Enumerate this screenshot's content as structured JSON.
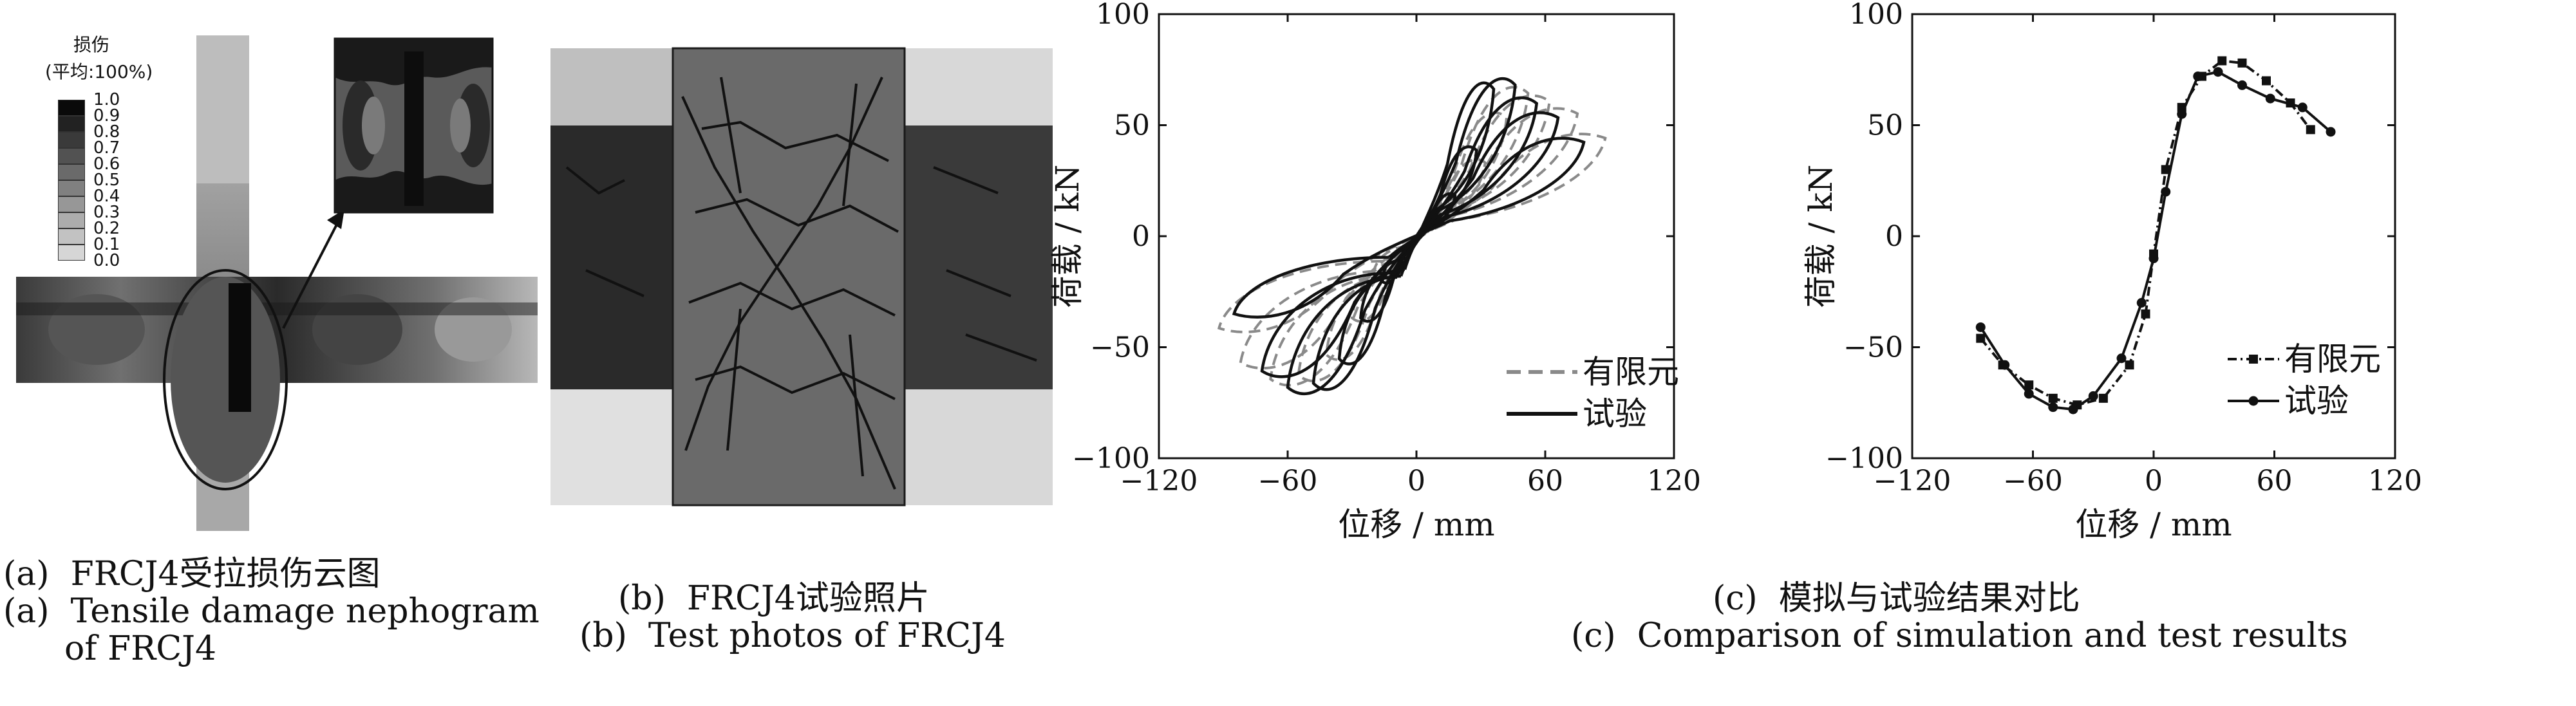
{
  "panel_a": {
    "legend_title": "损伤",
    "legend_subtitle": "(平均:100%)",
    "legend_levels": [
      "1.0",
      "0.9",
      "0.8",
      "0.7",
      "0.6",
      "0.5",
      "0.4",
      "0.3",
      "0.2",
      "0.1",
      "0.0"
    ],
    "legend_colors": [
      "#0a0a0a",
      "#222222",
      "#3a3a3a",
      "#525252",
      "#6a6a6a",
      "#808080",
      "#979797",
      "#adadad",
      "#c2c2c2",
      "#d6d6d6"
    ],
    "caption_cn": "(a)  FRCJ4受拉损伤云图",
    "caption_en_1": "(a)  Tensile damage nephogram",
    "caption_en_2": "of FRCJ4"
  },
  "panel_b": {
    "caption_cn": "(b)  FRCJ4试验照片",
    "caption_en": "(b)  Test photos of FRCJ4"
  },
  "panel_c": {
    "caption_cn": "(c)  模拟与试验结果对比",
    "caption_en": "(c)  Comparison of simulation and test results"
  },
  "chart_data": [
    {
      "type": "line",
      "xlabel": "位移 / mm",
      "ylabel": "荷载 / kN",
      "xlim": [
        -120,
        120
      ],
      "ylim": [
        -100,
        100
      ],
      "xticks": [
        -120,
        -60,
        0,
        60,
        120
      ],
      "yticks": [
        -100,
        -50,
        0,
        50,
        100
      ],
      "legend_position": "bottom-right",
      "series": [
        {
          "name": "有限元",
          "style": "dashed",
          "color": "#8a8a8a",
          "loops": [
            {
              "amp_pos": 22,
              "amp_neg": -20,
              "peak_pos": 18,
              "peak_neg": -18
            },
            {
              "amp_pos": 32,
              "amp_neg": -30,
              "peak_pos": 36,
              "peak_neg": -40
            },
            {
              "amp_pos": 42,
              "amp_neg": -42,
              "peak_pos": 58,
              "peak_neg": -58
            },
            {
              "amp_pos": 52,
              "amp_neg": -55,
              "peak_pos": 70,
              "peak_neg": -68
            },
            {
              "amp_pos": 62,
              "amp_neg": -68,
              "peak_pos": 66,
              "peak_neg": -70
            },
            {
              "amp_pos": 75,
              "amp_neg": -82,
              "peak_pos": 60,
              "peak_neg": -62
            },
            {
              "amp_pos": 88,
              "amp_neg": -92,
              "peak_pos": 48,
              "peak_neg": -45
            }
          ]
        },
        {
          "name": "试验",
          "style": "solid",
          "color": "#111111",
          "loops": [
            {
              "amp_pos": 18,
              "amp_neg": -16,
              "peak_pos": 20,
              "peak_neg": -22
            },
            {
              "amp_pos": 28,
              "amp_neg": -26,
              "peak_pos": 42,
              "peak_neg": -40
            },
            {
              "amp_pos": 36,
              "amp_neg": -36,
              "peak_pos": 72,
              "peak_neg": -60
            },
            {
              "amp_pos": 46,
              "amp_neg": -48,
              "peak_pos": 74,
              "peak_neg": -72
            },
            {
              "amp_pos": 56,
              "amp_neg": -60,
              "peak_pos": 65,
              "peak_neg": -74
            },
            {
              "amp_pos": 66,
              "amp_neg": -72,
              "peak_pos": 58,
              "peak_neg": -66
            },
            {
              "amp_pos": 78,
              "amp_neg": -85,
              "peak_pos": 46,
              "peak_neg": -38
            }
          ]
        }
      ]
    },
    {
      "type": "line",
      "xlabel": "位移 / mm",
      "ylabel": "荷载 / kN",
      "xlim": [
        -120,
        120
      ],
      "ylim": [
        -100,
        100
      ],
      "xticks": [
        -120,
        -60,
        0,
        60,
        120
      ],
      "yticks": [
        -100,
        -50,
        0,
        50,
        100
      ],
      "legend_position": "bottom-right",
      "series": [
        {
          "name": "有限元",
          "style": "dashdot",
          "marker": "square",
          "color": "#111111",
          "points": [
            [
              -86,
              -46
            ],
            [
              -75,
              -58
            ],
            [
              -62,
              -67
            ],
            [
              -50,
              -73
            ],
            [
              -38,
              -76
            ],
            [
              -25,
              -73
            ],
            [
              -12,
              -58
            ],
            [
              -4,
              -35
            ],
            [
              0,
              -8
            ],
            [
              6,
              30
            ],
            [
              14,
              58
            ],
            [
              24,
              72
            ],
            [
              34,
              79
            ],
            [
              44,
              78
            ],
            [
              56,
              70
            ],
            [
              68,
              60
            ],
            [
              78,
              48
            ]
          ]
        },
        {
          "name": "试验",
          "style": "solid",
          "marker": "circle",
          "color": "#111111",
          "points": [
            [
              -86,
              -41
            ],
            [
              -74,
              -58
            ],
            [
              -62,
              -71
            ],
            [
              -50,
              -77
            ],
            [
              -40,
              -78
            ],
            [
              -30,
              -72
            ],
            [
              -16,
              -55
            ],
            [
              -6,
              -30
            ],
            [
              0,
              -10
            ],
            [
              6,
              20
            ],
            [
              14,
              55
            ],
            [
              22,
              72
            ],
            [
              32,
              74
            ],
            [
              44,
              68
            ],
            [
              58,
              62
            ],
            [
              74,
              58
            ],
            [
              88,
              47
            ]
          ]
        }
      ]
    }
  ]
}
